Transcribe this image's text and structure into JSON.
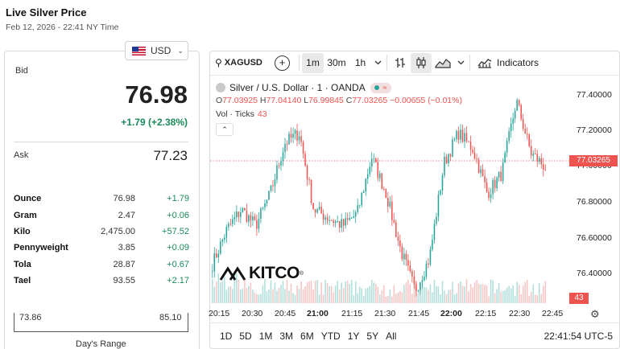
{
  "page": {
    "title": "Live Silver Price",
    "subtitle": "Feb 12, 2026 - 22:41 NY Time"
  },
  "currency": {
    "selected": "USD"
  },
  "quote": {
    "bid_label": "Bid",
    "bid": "76.98",
    "change": "+1.79 (+2.38%)",
    "ask_label": "Ask",
    "ask": "77.23"
  },
  "units": [
    {
      "name": "Ounce",
      "price": "76.98",
      "change": "+1.79"
    },
    {
      "name": "Gram",
      "price": "2.47",
      "change": "+0.06"
    },
    {
      "name": "Kilo",
      "price": "2,475.00",
      "change": "+57.52"
    },
    {
      "name": "Pennyweight",
      "price": "3.85",
      "change": "+0.09"
    },
    {
      "name": "Tola",
      "price": "28.87",
      "change": "+0.67"
    },
    {
      "name": "Tael",
      "price": "93.55",
      "change": "+2.17"
    }
  ],
  "days_range": {
    "low": "73.86",
    "high": "85.10",
    "label": "Day's Range"
  },
  "toolbar": {
    "symbol": "XAGUSD",
    "intervals": [
      "1m",
      "30m",
      "1h"
    ],
    "active_interval": "1m",
    "indicators_label": "Indicators",
    "icons": [
      "search-icon",
      "add-compare-icon",
      "chevron-down-icon",
      "bar-style-icon",
      "candle-style-icon",
      "area-style-icon",
      "indicators-icon"
    ]
  },
  "legend": {
    "name": "Silver / U.S. Dollar · 1 · OANDA",
    "o_label": "O",
    "o": "77.03925",
    "h_label": "H",
    "h": "77.04140",
    "l_label": "L",
    "l": "76.99845",
    "c_label": "C",
    "c": "77.03265",
    "chg": "−0.00655 (−0.01%)",
    "vol_label": "Vol · Ticks",
    "vol": "43"
  },
  "logo": {
    "text": "KITCO"
  },
  "chart_data": {
    "type": "candlestick",
    "x_ticks": [
      "20:15",
      "20:30",
      "20:45",
      "21:00",
      "21:15",
      "21:30",
      "21:45",
      "22:00",
      "22:15",
      "22:30",
      "22:45"
    ],
    "x_ticks_bold": [
      "21:00",
      "22:00"
    ],
    "y_ticks": [
      "77.40000",
      "77.20000",
      "77.00000",
      "76.80000",
      "76.60000",
      "76.40000"
    ],
    "ylim": [
      76.34,
      77.48
    ],
    "last_price": "77.03265",
    "last_volume": "43",
    "up_color": "#26a69a",
    "down_color": "#ef5350",
    "anchor_prices": [
      76.55,
      76.72,
      76.82,
      76.74,
      76.9,
      77.15,
      77.2,
      76.82,
      76.78,
      76.74,
      76.8,
      77.08,
      76.9,
      76.62,
      76.42,
      76.58,
      77.05,
      77.2,
      77.12,
      76.9,
      77.0,
      77.36,
      77.1,
      77.03
    ],
    "candle_count": 166
  },
  "bottom": {
    "ranges": [
      "1D",
      "5D",
      "1M",
      "3M",
      "6M",
      "YTD",
      "1Y",
      "5Y",
      "All"
    ],
    "clock": "22:41:54 UTC-5"
  }
}
